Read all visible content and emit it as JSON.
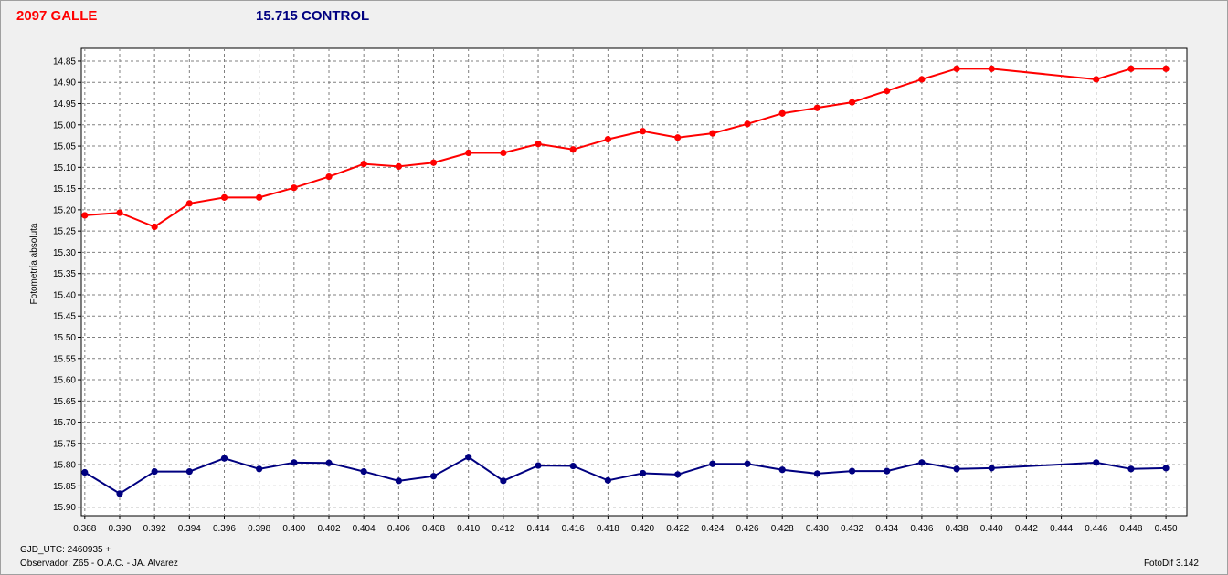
{
  "header": {
    "target_label": "2097 GALLE",
    "target_color": "#ff0000",
    "control_label": "15.715 CONTROL",
    "control_color": "#000080"
  },
  "footer": {
    "gjd_label": "GJD_UTC: 2460935 +",
    "observer_label": "Observador: Z65 - O.A.C. - JA. Alvarez",
    "version_label": "FotoDif 3.142"
  },
  "chart_data": {
    "type": "line",
    "title": "",
    "xlabel": "",
    "ylabel": "Fotometría absoluta",
    "xlim": [
      0.3878,
      0.4512
    ],
    "ylim": [
      14.82,
      15.92
    ],
    "y_inverted": true,
    "grid": true,
    "x_ticks": [
      0.388,
      0.39,
      0.392,
      0.394,
      0.396,
      0.398,
      0.4,
      0.402,
      0.404,
      0.406,
      0.408,
      0.41,
      0.412,
      0.414,
      0.416,
      0.418,
      0.42,
      0.422,
      0.424,
      0.426,
      0.428,
      0.43,
      0.432,
      0.434,
      0.436,
      0.438,
      0.44,
      0.442,
      0.444,
      0.446,
      0.448,
      0.45
    ],
    "x_tick_labels": [
      "0.388",
      "0.390",
      "0.392",
      "0.394",
      "0.396",
      "0.398",
      "0.400",
      "0.402",
      "0.404",
      "0.406",
      "0.408",
      "0.410",
      "0.412",
      "0.414",
      "0.416",
      "0.418",
      "0.420",
      "0.422",
      "0.424",
      "0.426",
      "0.428",
      "0.430",
      "0.432",
      "0.434",
      "0.436",
      "0.438",
      "0.440",
      "0.442",
      "0.444",
      "0.446",
      "0.448",
      "0.450"
    ],
    "y_ticks": [
      14.85,
      14.9,
      14.95,
      15.0,
      15.05,
      15.1,
      15.15,
      15.2,
      15.25,
      15.3,
      15.35,
      15.4,
      15.45,
      15.5,
      15.55,
      15.6,
      15.65,
      15.7,
      15.75,
      15.8,
      15.85,
      15.9
    ],
    "y_tick_labels": [
      "14.85",
      "14.90",
      "14.95",
      "15.00",
      "15.05",
      "15.10",
      "15.15",
      "15.20",
      "15.25",
      "15.30",
      "15.35",
      "15.40",
      "15.45",
      "15.50",
      "15.55",
      "15.60",
      "15.65",
      "15.70",
      "15.75",
      "15.80",
      "15.85",
      "15.90"
    ],
    "series": [
      {
        "name": "2097 GALLE",
        "color": "#ff0000",
        "x": [
          0.388,
          0.39,
          0.392,
          0.394,
          0.396,
          0.398,
          0.4,
          0.402,
          0.404,
          0.406,
          0.408,
          0.41,
          0.412,
          0.414,
          0.416,
          0.418,
          0.42,
          0.422,
          0.424,
          0.426,
          0.428,
          0.43,
          0.432,
          0.434,
          0.436,
          0.438,
          0.44,
          0.446,
          0.448,
          0.45
        ],
        "y": [
          15.213,
          15.207,
          15.24,
          15.185,
          15.171,
          15.171,
          15.148,
          15.122,
          15.092,
          15.098,
          15.089,
          15.066,
          15.066,
          15.045,
          15.058,
          15.034,
          15.015,
          15.03,
          15.02,
          14.998,
          14.973,
          14.96,
          14.947,
          14.92,
          14.893,
          14.868,
          14.868,
          14.893,
          14.868,
          14.868
        ]
      },
      {
        "name": "15.715 CONTROL",
        "color": "#000080",
        "x": [
          0.388,
          0.39,
          0.392,
          0.394,
          0.396,
          0.398,
          0.4,
          0.402,
          0.404,
          0.406,
          0.408,
          0.41,
          0.412,
          0.414,
          0.416,
          0.418,
          0.42,
          0.422,
          0.424,
          0.426,
          0.428,
          0.43,
          0.432,
          0.434,
          0.436,
          0.438,
          0.44,
          0.446,
          0.448,
          0.45
        ],
        "y": [
          15.818,
          15.868,
          15.816,
          15.816,
          15.785,
          15.81,
          15.795,
          15.796,
          15.816,
          15.838,
          15.827,
          15.782,
          15.838,
          15.802,
          15.803,
          15.837,
          15.82,
          15.823,
          15.798,
          15.798,
          15.812,
          15.821,
          15.815,
          15.815,
          15.795,
          15.81,
          15.808,
          15.795,
          15.81,
          15.808
        ]
      }
    ]
  }
}
